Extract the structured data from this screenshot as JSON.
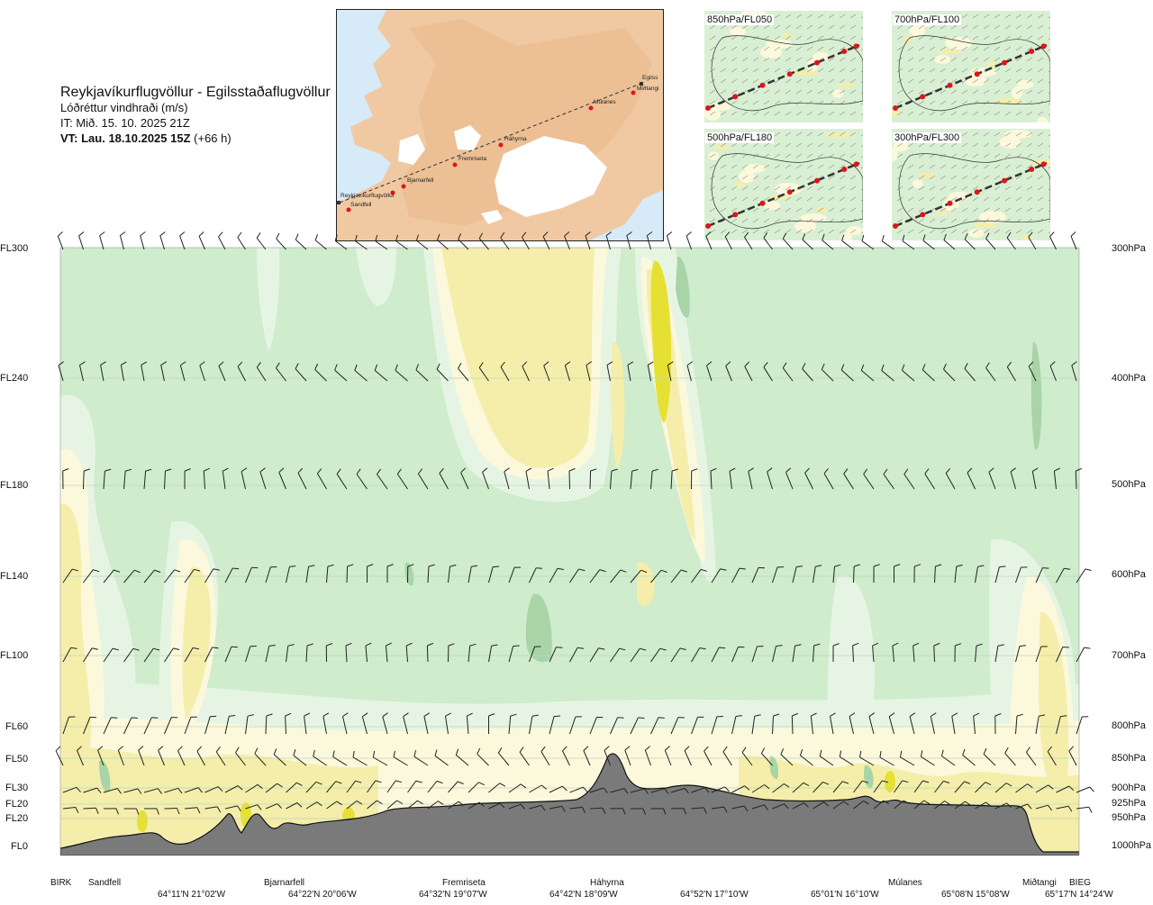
{
  "header": {
    "title": "Reykjavíkurflugvöllur - Egilsstaðaflugvöllur",
    "subtitle": "Lóðréttur vindhraði (m/s)",
    "issue": "IT: Mið. 15. 10. 2025 21Z",
    "valid_bold": "VT: Lau. 18.10.2025 15Z",
    "valid_rest": " (+66 h)"
  },
  "map": {
    "route_points": [
      "Reykjavíkurflugvöllur",
      "Sandfell",
      "Bjarnarfell",
      "Fremriseta",
      "Háhyrna",
      "Múlanes",
      "Miðtangi",
      "Egilsstaðaflugvöllur"
    ],
    "route_labels": [
      "Reykjavíkurflugvöllur",
      "Sandfell",
      "Bjarnarfell",
      "Fremriseta",
      "Háhyrna",
      "Múlanes",
      "Miðtangi",
      "Egilss"
    ]
  },
  "mini_panels": [
    {
      "label": "850hPa/FL050"
    },
    {
      "label": "700hPa/FL100"
    },
    {
      "label": "500hPa/FL180"
    },
    {
      "label": "300hPa/FL300"
    }
  ],
  "cross_section": {
    "left_levels": [
      "FL300",
      "FL240",
      "FL180",
      "FL140",
      "FL100",
      "FL60",
      "FL50",
      "FL30",
      "FL20",
      "FL20",
      "FL0"
    ],
    "right_levels": [
      "300hPa",
      "400hPa",
      "500hPa",
      "600hPa",
      "700hPa",
      "800hPa",
      "850hPa",
      "900hPa",
      "925hPa",
      "950hPa",
      "1000hPa"
    ],
    "waypoint_labels": [
      "BIRK",
      "Sandfell",
      "Bjarnarfell",
      "Fremriseta",
      "Háhyrna",
      "Múlanes",
      "Miðtangi",
      "BIEG"
    ],
    "coord_labels": [
      "64°11'N 21°02'W",
      "64°22'N 20°06'W",
      "64°32'N 19°07'W",
      "64°42'N 18°09'W",
      "64°52'N 17°10'W",
      "65°01'N 16°10'W",
      "65°08'N 15°08'W",
      "65°17'N 14°24'W"
    ]
  },
  "colors": {
    "bg_green": "#cfeccd",
    "pale_green": "#e6f5e3",
    "cream": "#fbf8dc",
    "yellow": "#f4eeaa",
    "bright_yellow": "#e6e033",
    "dark_green": "#a8d4a8",
    "terrain": "#7a7a7a",
    "land": "#f0c9a2",
    "sea": "#d6eaf7",
    "ice": "#ffffff",
    "route_point": "#e0141c"
  }
}
